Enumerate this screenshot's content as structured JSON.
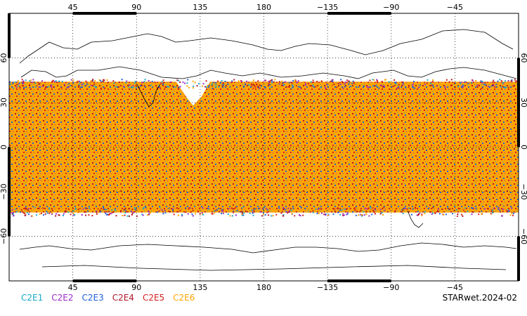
{
  "map": {
    "projection": "equirectangular",
    "lon_ticks_top": [
      "45",
      "90",
      "135",
      "180",
      "−135",
      "−90",
      "−45"
    ],
    "lon_ticks_bottom": [
      "45",
      "90",
      "135",
      "180",
      "−135",
      "−90",
      "−45"
    ],
    "lat_ticks_left": [
      "60",
      "30",
      "0",
      "−30",
      "−60"
    ],
    "lat_ticks_right": [
      "60",
      "30",
      "0",
      "−30",
      "−60"
    ],
    "observation_band": "approximately 45°S to 45°N"
  },
  "legend": {
    "items": [
      {
        "label": "C2E1",
        "color": "#19a9c9"
      },
      {
        "label": "C2E2",
        "color": "#9a2bc8"
      },
      {
        "label": "C2E3",
        "color": "#2060d8"
      },
      {
        "label": "C2E4",
        "color": "#b0172a"
      },
      {
        "label": "C2E5",
        "color": "#d42020"
      },
      {
        "label": "C2E6",
        "color": "#ffa500"
      }
    ]
  },
  "product_label": "STARwet.2024-02",
  "colors": {
    "background": "#ffffff",
    "coastline": "#000000",
    "grid": "#000000"
  }
}
